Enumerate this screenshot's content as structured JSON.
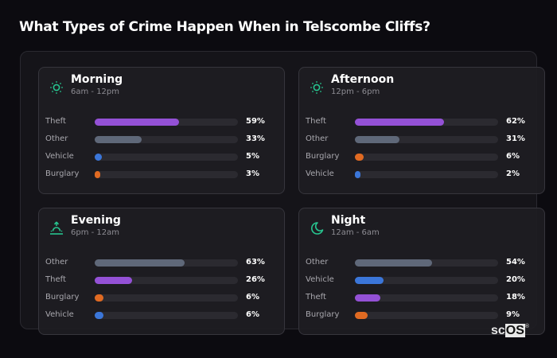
{
  "title": "What Types of Crime Happen When in Telscombe Cliffs?",
  "colors": {
    "Theft": "#9451d6",
    "Other": "#5f6879",
    "Vehicle": "#3b76d9",
    "Burglary": "#e06a22",
    "icon": "#27c48f"
  },
  "cards": [
    {
      "name": "Morning",
      "range": "6am - 12pm",
      "icon": "sun-icon",
      "rows": [
        {
          "label": "Theft",
          "value": 59,
          "pct": "59%"
        },
        {
          "label": "Other",
          "value": 33,
          "pct": "33%"
        },
        {
          "label": "Vehicle",
          "value": 5,
          "pct": "5%"
        },
        {
          "label": "Burglary",
          "value": 3,
          "pct": "3%"
        }
      ]
    },
    {
      "name": "Afternoon",
      "range": "12pm - 6pm",
      "icon": "sun-icon",
      "rows": [
        {
          "label": "Theft",
          "value": 62,
          "pct": "62%"
        },
        {
          "label": "Other",
          "value": 31,
          "pct": "31%"
        },
        {
          "label": "Burglary",
          "value": 6,
          "pct": "6%"
        },
        {
          "label": "Vehicle",
          "value": 2,
          "pct": "2%"
        }
      ]
    },
    {
      "name": "Evening",
      "range": "6pm - 12am",
      "icon": "sunset-icon",
      "rows": [
        {
          "label": "Other",
          "value": 63,
          "pct": "63%"
        },
        {
          "label": "Theft",
          "value": 26,
          "pct": "26%"
        },
        {
          "label": "Burglary",
          "value": 6,
          "pct": "6%"
        },
        {
          "label": "Vehicle",
          "value": 6,
          "pct": "6%"
        }
      ]
    },
    {
      "name": "Night",
      "range": "12am - 6am",
      "icon": "moon-icon",
      "rows": [
        {
          "label": "Other",
          "value": 54,
          "pct": "54%"
        },
        {
          "label": "Vehicle",
          "value": 20,
          "pct": "20%"
        },
        {
          "label": "Theft",
          "value": 18,
          "pct": "18%"
        },
        {
          "label": "Burglary",
          "value": 9,
          "pct": "9%"
        }
      ]
    }
  ],
  "logo": {
    "sc": "sc",
    "os": "OS",
    "reg": "®"
  },
  "chart_data": {
    "type": "bar",
    "title": "What Types of Crime Happen When in Telscombe Cliffs?",
    "orientation": "horizontal",
    "xlim": [
      0,
      100
    ],
    "unit": "%",
    "panels": [
      {
        "title": "Morning",
        "subtitle": "6am - 12pm",
        "categories": [
          "Theft",
          "Other",
          "Vehicle",
          "Burglary"
        ],
        "values": [
          59,
          33,
          5,
          3
        ]
      },
      {
        "title": "Afternoon",
        "subtitle": "12pm - 6pm",
        "categories": [
          "Theft",
          "Other",
          "Burglary",
          "Vehicle"
        ],
        "values": [
          62,
          31,
          6,
          2
        ]
      },
      {
        "title": "Evening",
        "subtitle": "6pm - 12am",
        "categories": [
          "Other",
          "Theft",
          "Burglary",
          "Vehicle"
        ],
        "values": [
          63,
          26,
          6,
          6
        ]
      },
      {
        "title": "Night",
        "subtitle": "12am - 6am",
        "categories": [
          "Other",
          "Vehicle",
          "Theft",
          "Burglary"
        ],
        "values": [
          54,
          20,
          18,
          9
        ]
      }
    ]
  }
}
